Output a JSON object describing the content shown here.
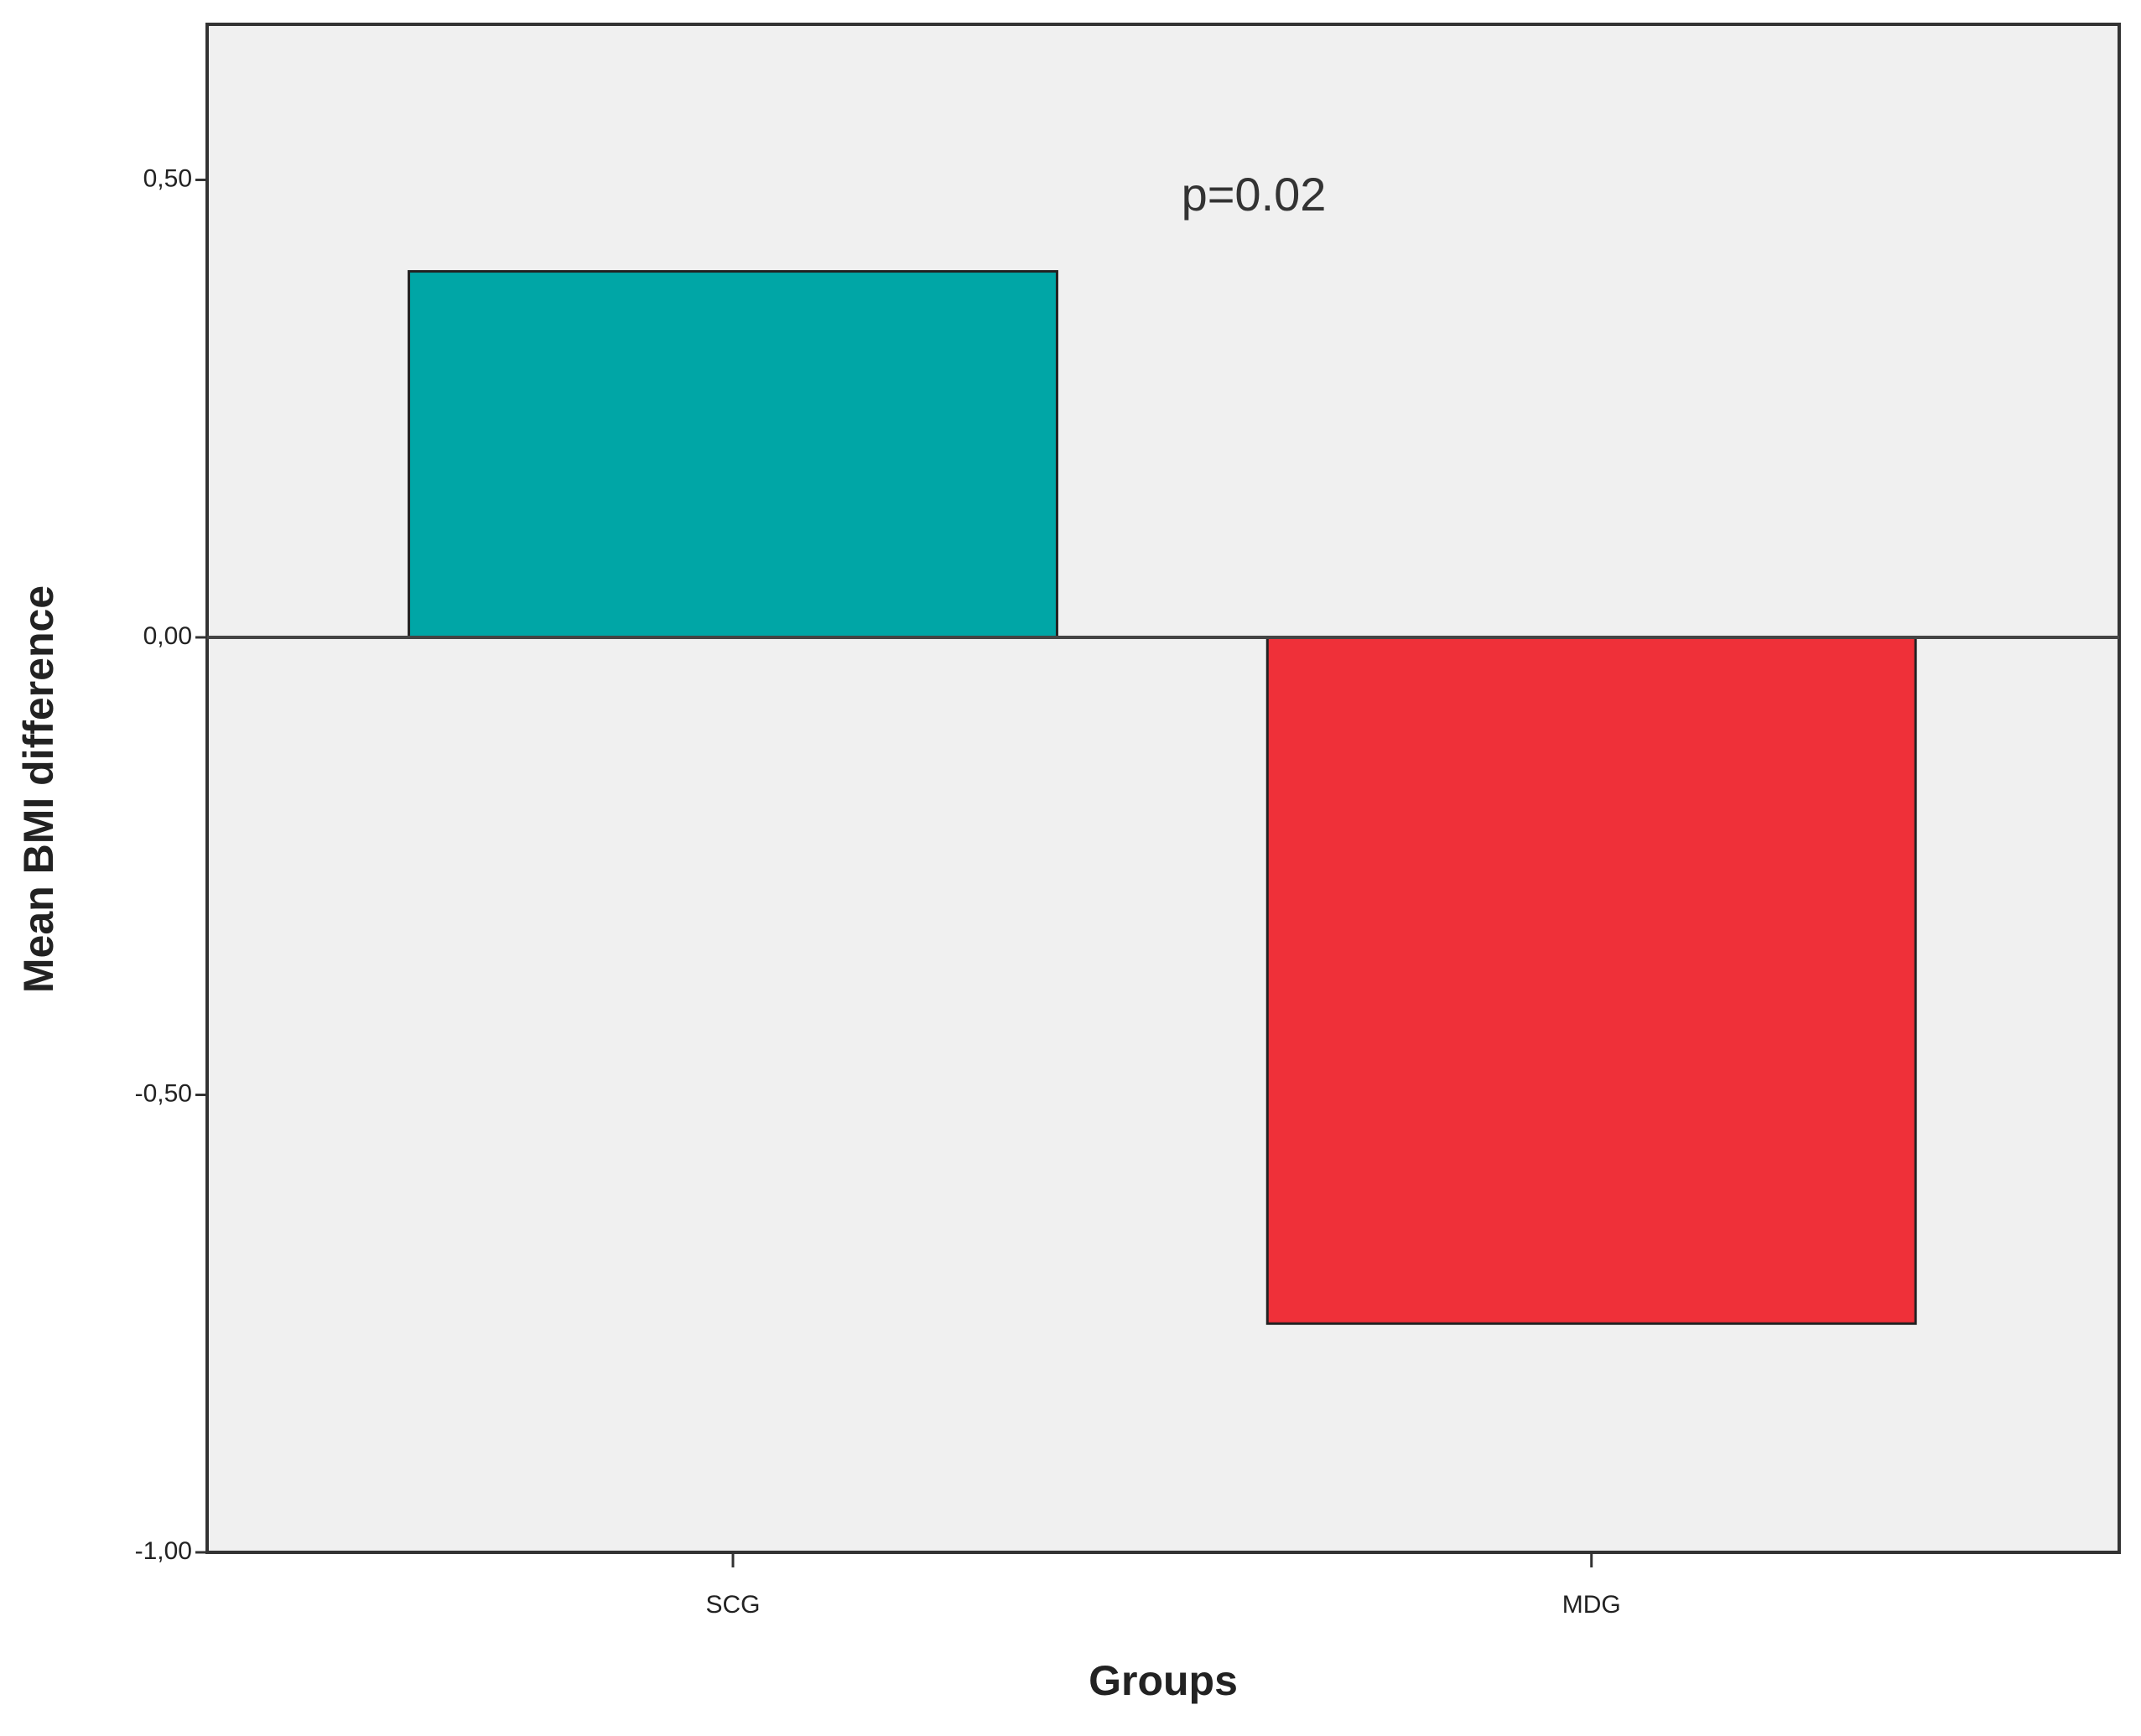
{
  "chart_data": {
    "type": "bar",
    "categories": [
      "SCG",
      "MDG"
    ],
    "series": [
      {
        "name": "Mean BMI difference",
        "values": [
          0.4,
          -0.75
        ],
        "colors": [
          "#00a6a6",
          "#ef3039"
        ]
      }
    ],
    "xlabel": "Groups",
    "ylabel": "Mean BMI difference",
    "annotation": "p=0.02",
    "ylim": [
      -1,
      0.67
    ],
    "yticks": [
      {
        "value": -1,
        "label": "-1,00"
      },
      {
        "value": -0.5,
        "label": "-0,50"
      },
      {
        "value": 0,
        "label": "0,00"
      },
      {
        "value": 0.5,
        "label": "0,50"
      }
    ],
    "background": "#f0f0f0",
    "grid": false
  }
}
